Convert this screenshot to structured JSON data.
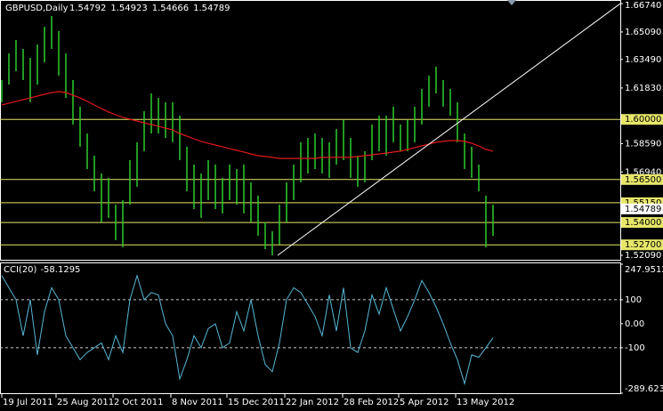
{
  "chart_data": {
    "type": "hl-bars",
    "title": "GBPUSD,Daily",
    "quote": [
      1.54792,
      1.54923,
      1.54666,
      1.54789
    ],
    "xlim": [
      -0.25,
      86.875
    ],
    "xticks": [
      {
        "value": 0,
        "label": "19 Jul 2011"
      },
      {
        "value": 7.625,
        "label": "25 Aug 2011"
      },
      {
        "value": 15.625,
        "label": "2 Oct 2011"
      },
      {
        "value": 23.75,
        "label": "8 Nov 2011"
      },
      {
        "value": 31.625,
        "label": "15 Dec 2011"
      },
      {
        "value": 39.75,
        "label": "22 Jan 2012"
      },
      {
        "value": 47.875,
        "label": "28 Feb 2012"
      },
      {
        "value": 55.75,
        "label": "5 Apr 2012"
      },
      {
        "value": 63.75,
        "label": "13 May 2012"
      }
    ],
    "ylim": [
      1.5183,
      1.6695
    ],
    "yticks": [
      {
        "value": 1.6674,
        "label": "1.66740"
      },
      {
        "value": 1.6509,
        "label": "1.65090"
      },
      {
        "value": 1.6349,
        "label": "1.63490"
      },
      {
        "value": 1.6183,
        "label": "1.61830"
      },
      {
        "value": 1.5859,
        "label": "1.58590"
      },
      {
        "value": 1.5694,
        "label": "1.56940"
      },
      {
        "value": 1.5209,
        "label": "1.52090"
      }
    ],
    "hlines": [
      {
        "value": 1.6,
        "label": "1.60000"
      },
      {
        "value": 1.565,
        "label": "1.56500"
      },
      {
        "value": 1.5515,
        "label": "1.55150"
      },
      {
        "value": 1.54,
        "label": "1.54000"
      },
      {
        "value": 1.527,
        "label": "1.52700"
      }
    ],
    "hline_color": "#e6e66a",
    "last_price": 1.54789,
    "bar_color": "#2ecc2e",
    "high": [
      1.6229,
      1.6384,
      1.6462,
      1.641,
      1.6358,
      1.6436,
      1.6539,
      1.6602,
      1.6514,
      1.6384,
      1.6229,
      1.6074,
      1.5918,
      1.5789,
      1.5685,
      1.566,
      1.5504,
      1.553,
      1.5763,
      1.5867,
      1.6048,
      1.6151,
      1.6125,
      1.61,
      1.61,
      1.6022,
      1.5841,
      1.5737,
      1.5685,
      1.5763,
      1.5737,
      1.566,
      1.5737,
      1.5711,
      1.5737,
      1.5634,
      1.5556,
      1.5401,
      1.5349,
      1.5504,
      1.5634,
      1.5737,
      1.5867,
      1.5892,
      1.5918,
      1.5892,
      1.5867,
      1.5944,
      1.5996,
      1.5892,
      1.5789,
      1.5815,
      1.597,
      1.6022,
      1.6022,
      1.6074,
      1.597,
      1.5996,
      1.6074,
      1.6177,
      1.6255,
      1.6307,
      1.6229,
      1.6177,
      1.61,
      1.5918,
      1.5841,
      1.5737,
      1.5556,
      1.5504
    ],
    "low": [
      1.61,
      1.6203,
      1.6281,
      1.6229,
      1.61,
      1.6203,
      1.6332,
      1.641,
      1.6255,
      1.6125,
      1.597,
      1.5841,
      1.5711,
      1.5582,
      1.5401,
      1.5427,
      1.5297,
      1.5256,
      1.5504,
      1.5608,
      1.5815,
      1.5918,
      1.5918,
      1.5892,
      1.5867,
      1.5763,
      1.5582,
      1.5478,
      1.5427,
      1.553,
      1.5478,
      1.5453,
      1.553,
      1.5504,
      1.5453,
      1.5401,
      1.5323,
      1.5245,
      1.5209,
      1.5271,
      1.5401,
      1.553,
      1.5634,
      1.5685,
      1.5711,
      1.5685,
      1.566,
      1.5737,
      1.5763,
      1.566,
      1.5608,
      1.5634,
      1.5763,
      1.5815,
      1.5789,
      1.5867,
      1.5815,
      1.5815,
      1.5867,
      1.597,
      1.6074,
      1.6151,
      1.6074,
      1.6022,
      1.5867,
      1.5711,
      1.566,
      1.5582,
      1.5256,
      1.5323
    ],
    "ma": {
      "color": "#e01818",
      "values": [
        1.6084,
        1.6094,
        1.6105,
        1.6115,
        1.6125,
        1.6136,
        1.6146,
        1.6156,
        1.6162,
        1.6156,
        1.6141,
        1.6125,
        1.6105,
        1.6084,
        1.6063,
        1.6043,
        1.6027,
        1.6012,
        1.6001,
        1.5991,
        1.598,
        1.597,
        1.596,
        1.5949,
        1.5939,
        1.5918,
        1.5903,
        1.5887,
        1.5872,
        1.5861,
        1.5851,
        1.5841,
        1.583,
        1.582,
        1.581,
        1.5799,
        1.5789,
        1.5784,
        1.5779,
        1.5773,
        1.5773,
        1.5773,
        1.5773,
        1.5773,
        1.5773,
        1.5779,
        1.5779,
        1.5779,
        1.5779,
        1.5779,
        1.5784,
        1.5789,
        1.5794,
        1.5799,
        1.5804,
        1.581,
        1.5815,
        1.5825,
        1.5836,
        1.5846,
        1.5856,
        1.5867,
        1.5872,
        1.5877,
        1.5877,
        1.5872,
        1.5861,
        1.5846,
        1.5825,
        1.5815
      ]
    },
    "trendline": {
      "color": "#ffffff",
      "x": [
        38.75,
        86.875
      ],
      "y": [
        1.5209,
        1.6674
      ]
    },
    "cci": {
      "name": "CCI(20)",
      "color": "#56b8d6",
      "ylim": [
        -289.623,
        247.9512
      ],
      "yticks": [
        247.9512,
        100,
        {
          "value": 0,
          "label": "0.00"
        },
        -100,
        -289.623
      ],
      "levels": [
        100,
        -100
      ],
      "values": [
        200,
        150,
        100,
        -50,
        100,
        -130,
        50,
        150,
        100,
        -50,
        -100,
        -150,
        -120,
        -100,
        -80,
        -150,
        -50,
        -120,
        100,
        200,
        100,
        130,
        120,
        0,
        -50,
        -230,
        -150,
        -50,
        -100,
        -20,
        0,
        -100,
        -80,
        50,
        -30,
        100,
        -50,
        -170,
        -200,
        -80,
        100,
        150,
        130,
        80,
        30,
        -50,
        120,
        -30,
        150,
        -100,
        -120,
        -30,
        120,
        40,
        150,
        60,
        -30,
        30,
        100,
        180,
        130,
        70,
        0,
        -80,
        -150,
        -250,
        -130,
        -140,
        -100,
        -58.1295
      ]
    }
  }
}
